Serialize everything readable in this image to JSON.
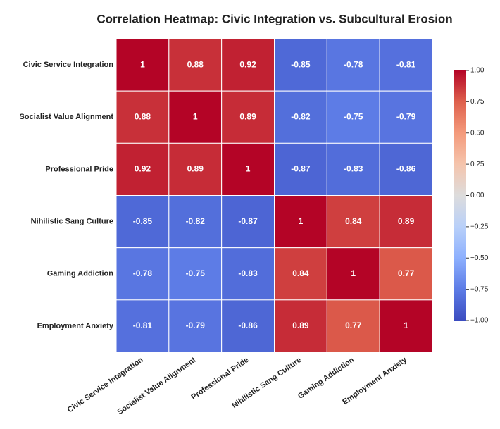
{
  "chart_data": {
    "type": "heatmap",
    "title": "Correlation Heatmap: Civic Integration vs. Subcultural Erosion",
    "x": [
      "Civic Service Integration",
      "Socialist Value Alignment",
      "Professional Pride",
      "Nihilistic Sang Culture",
      "Gaming Addiction",
      "Employment Anxiety"
    ],
    "y": [
      "Civic Service Integration",
      "Socialist Value Alignment",
      "Professional Pride",
      "Nihilistic Sang Culture",
      "Gaming Addiction",
      "Employment Anxiety"
    ],
    "values": [
      [
        1,
        0.88,
        0.92,
        -0.85,
        -0.78,
        -0.81
      ],
      [
        0.88,
        1,
        0.89,
        -0.82,
        -0.75,
        -0.79
      ],
      [
        0.92,
        0.89,
        1,
        -0.87,
        -0.83,
        -0.86
      ],
      [
        -0.85,
        -0.82,
        -0.87,
        1,
        0.84,
        0.89
      ],
      [
        -0.78,
        -0.75,
        -0.83,
        0.84,
        1,
        0.77
      ],
      [
        -0.81,
        -0.79,
        -0.86,
        0.89,
        0.77,
        1
      ]
    ],
    "colormap": "coolwarm",
    "zlim": [
      -1,
      1
    ],
    "zticks": [
      {
        "value": 1,
        "label": "1.00"
      },
      {
        "value": 0.75,
        "label": "0.75"
      },
      {
        "value": 0.5,
        "label": "0.50"
      },
      {
        "value": 0.25,
        "label": "0.25"
      },
      {
        "value": 0,
        "label": "0.00"
      },
      {
        "value": -0.25,
        "label": "−0.25"
      },
      {
        "value": -0.5,
        "label": "−0.50"
      },
      {
        "value": -0.75,
        "label": "−0.75"
      },
      {
        "value": -1,
        "label": "−1.00"
      }
    ]
  }
}
